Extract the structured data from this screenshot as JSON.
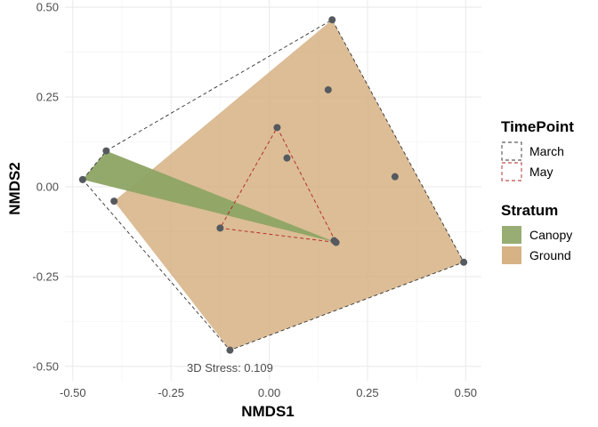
{
  "chart_data": {
    "type": "scatter",
    "xlabel": "NMDS1",
    "ylabel": "NMDS2",
    "xlim": [
      -0.52,
      0.54
    ],
    "ylim": [
      -0.54,
      0.52
    ],
    "x_ticks": [
      -0.5,
      -0.25,
      0.0,
      0.25,
      0.5
    ],
    "x_tick_labels": [
      "-0.50",
      "-0.25",
      "0.00",
      "0.25",
      "0.50"
    ],
    "y_ticks": [
      -0.5,
      -0.25,
      0.0,
      0.25,
      0.5
    ],
    "y_tick_labels": [
      "-0.50",
      "-0.25",
      "0.00",
      "0.25",
      "0.50"
    ],
    "grid": true,
    "points": [
      {
        "x": 0.16,
        "y": 0.465
      },
      {
        "x": 0.15,
        "y": 0.27
      },
      {
        "x": 0.02,
        "y": 0.165
      },
      {
        "x": 0.045,
        "y": 0.08
      },
      {
        "x": 0.32,
        "y": 0.028
      },
      {
        "x": -0.415,
        "y": 0.1
      },
      {
        "x": -0.475,
        "y": 0.02
      },
      {
        "x": -0.395,
        "y": -0.04
      },
      {
        "x": -0.125,
        "y": -0.115
      },
      {
        "x": 0.17,
        "y": -0.155
      },
      {
        "x": 0.165,
        "y": -0.15
      },
      {
        "x": 0.495,
        "y": -0.21
      },
      {
        "x": -0.1,
        "y": -0.455
      }
    ],
    "hulls": [
      {
        "group": "Stratum",
        "name": "Ground",
        "fill": "#d2aa78",
        "vertices": [
          [
            -0.395,
            -0.04
          ],
          [
            0.16,
            0.465
          ],
          [
            0.495,
            -0.21
          ],
          [
            -0.1,
            -0.455
          ]
        ]
      },
      {
        "group": "Stratum",
        "name": "Canopy",
        "fill": "#8da464",
        "vertices": [
          [
            -0.475,
            0.02
          ],
          [
            -0.415,
            0.1
          ],
          [
            0.17,
            -0.155
          ]
        ]
      },
      {
        "group": "TimePoint",
        "name": "March",
        "stroke": "#333333",
        "vertices": [
          [
            -0.475,
            0.02
          ],
          [
            -0.415,
            0.1
          ],
          [
            0.16,
            0.465
          ],
          [
            0.495,
            -0.21
          ],
          [
            -0.1,
            -0.455
          ]
        ]
      },
      {
        "group": "TimePoint",
        "name": "May",
        "stroke": "#b22222",
        "vertices": [
          [
            0.02,
            0.165
          ],
          [
            0.17,
            -0.155
          ],
          [
            -0.125,
            -0.115
          ]
        ]
      }
    ],
    "annotation": {
      "text": "3D Stress: 0.109",
      "x": -0.1,
      "y": -0.505
    },
    "legend": {
      "placement": "right",
      "groups": [
        {
          "title": "TimePoint",
          "kind": "line",
          "entries": [
            {
              "label": "March",
              "color": "#333333"
            },
            {
              "label": "May",
              "color": "#b22222"
            }
          ]
        },
        {
          "title": "Stratum",
          "kind": "fill",
          "entries": [
            {
              "label": "Canopy",
              "color": "#8da464"
            },
            {
              "label": "Ground",
              "color": "#d2aa78"
            }
          ]
        }
      ]
    }
  }
}
